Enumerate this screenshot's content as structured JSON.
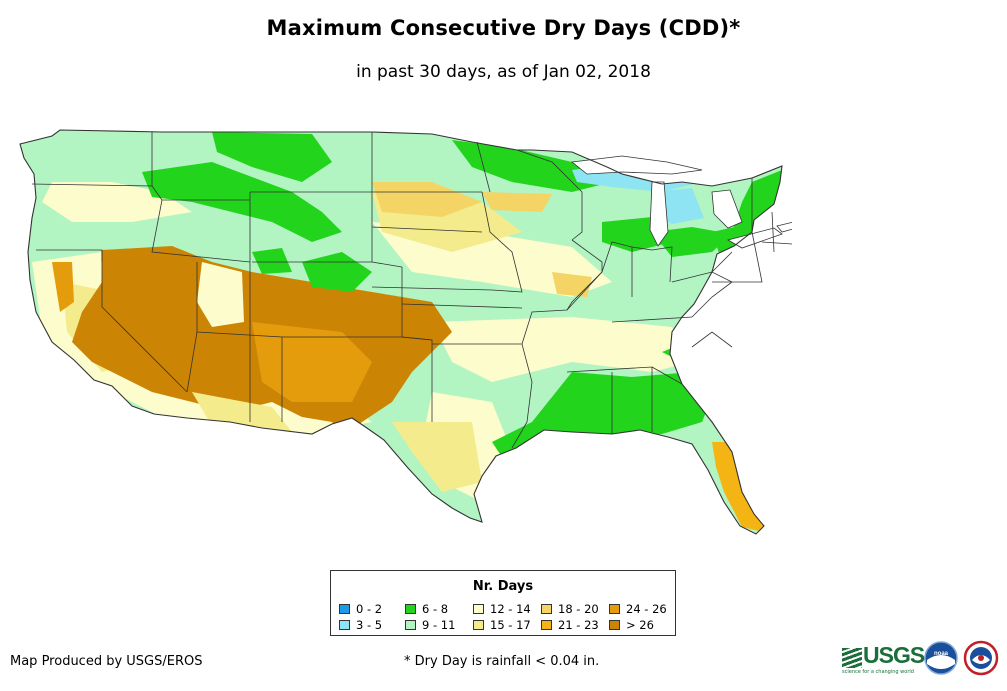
{
  "header": {
    "title": "Maximum Consecutive Dry Days (CDD)*",
    "subtitle": "in past 30 days, as of Jan 02, 2018"
  },
  "legend": {
    "title": "Nr. Days",
    "items": [
      {
        "label": "0 - 2",
        "color": "#1e9be6"
      },
      {
        "label": "3 - 5",
        "color": "#8ee4f2"
      },
      {
        "label": "6 - 8",
        "color": "#22d41c"
      },
      {
        "label": "9 - 11",
        "color": "#b2f4c2"
      },
      {
        "label": "12 - 14",
        "color": "#fcfccc"
      },
      {
        "label": "15 - 17",
        "color": "#f4ec8c"
      },
      {
        "label": "18 - 20",
        "color": "#f4d464"
      },
      {
        "label": "21 - 23",
        "color": "#f4b414"
      },
      {
        "label": "24 - 26",
        "color": "#e49c0c"
      },
      {
        "label": "> 26",
        "color": "#cc8404"
      }
    ]
  },
  "footer": {
    "credit": "Map Produced by USGS/EROS",
    "footnote": "* Dry Day is rainfall < 0.04 in.",
    "usgs_logo_text": "USGS",
    "usgs_tagline": "science for a changing world",
    "noaa_logo_text": "noaa"
  },
  "map": {
    "region": "Contiguous United States",
    "base_color": "#b2f4c2",
    "border_color": "#333333"
  }
}
